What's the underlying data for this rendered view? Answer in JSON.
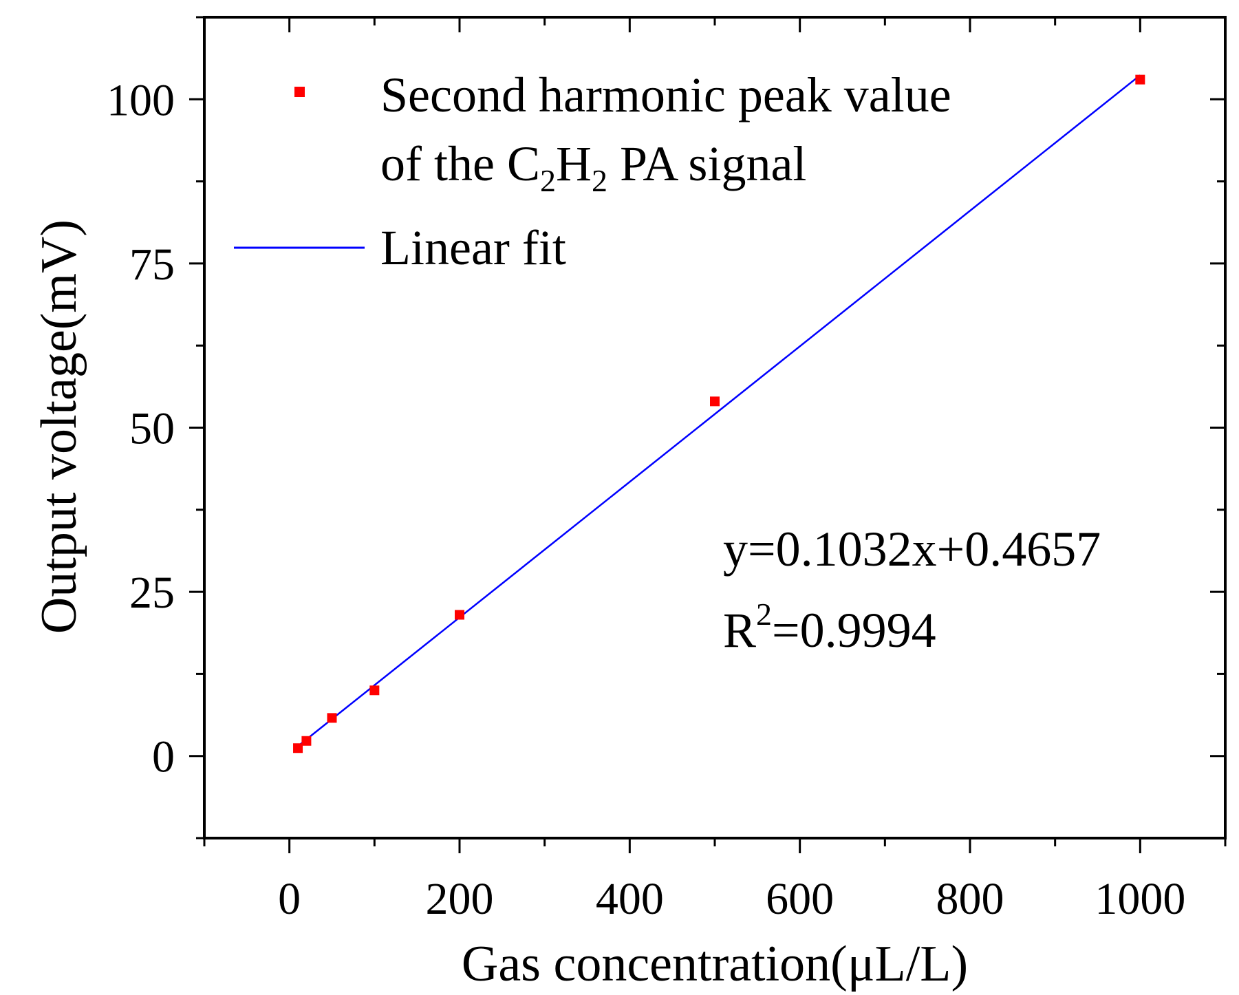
{
  "chart_data": {
    "type": "scatter",
    "title": "",
    "xlabel": "Gas concentration(μL/L)",
    "ylabel": "Output voltage(mV)",
    "xlim": [
      -100,
      1100
    ],
    "ylim": [
      -12.5,
      112.5
    ],
    "xticks": [
      0,
      200,
      400,
      600,
      800,
      1000
    ],
    "xtick_labels": [
      "0",
      "200",
      "400",
      "600",
      "800",
      "1000"
    ],
    "yticks": [
      0,
      25,
      50,
      75,
      100
    ],
    "ytick_labels": [
      "0",
      "25",
      "50",
      "75",
      "100"
    ],
    "x_minor_step": 100,
    "y_minor_step": 12.5,
    "grid": false,
    "legend_position": "top-left",
    "series": [
      {
        "name": "Second harmonic peak value of the C2H2 PA signal",
        "kind": "scatter",
        "color": "#ff0000",
        "x": [
          10,
          20,
          50,
          100,
          200,
          500,
          1000
        ],
        "y": [
          1.2,
          2.3,
          5.8,
          10.0,
          21.5,
          54.0,
          103.0
        ]
      },
      {
        "name": "Linear fit",
        "kind": "line",
        "color": "#0000ff",
        "slope": 0.1032,
        "intercept": 0.4657,
        "x_range": [
          8,
          1000
        ]
      }
    ],
    "legend": {
      "scatter_line1": "Second harmonic peak value",
      "scatter_line2_prefix": "of the C",
      "sub1": "2",
      "mid": "H",
      "sub2": "2",
      "scatter_line2_suffix": " PA signal",
      "fit_label": "Linear fit"
    },
    "annotation": {
      "equation": "y=0.1032x+0.4657",
      "r_prefix": "R",
      "r_sup": "2",
      "r_value": "=0.9994"
    }
  }
}
